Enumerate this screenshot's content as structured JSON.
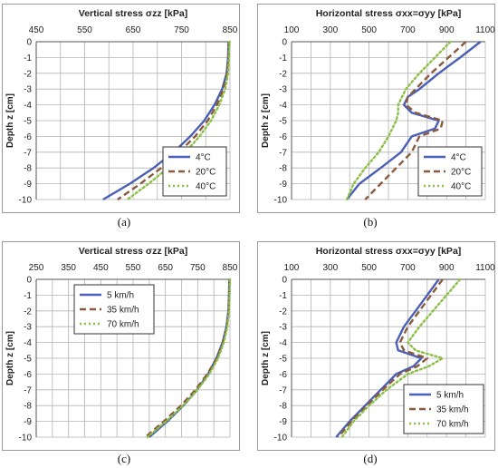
{
  "captions": [
    "(a)",
    "(b)",
    "(c)",
    "(d)"
  ],
  "colors": {
    "series1": "#4a5fb5",
    "series2": "#8a5a3c",
    "series3": "#8cbf45"
  },
  "chart_data": [
    {
      "type": "line",
      "title": "Vertical stress σzz [kPa]",
      "xlabel": "",
      "ylabel": "Depth z [cm]",
      "xlim": [
        450,
        850
      ],
      "ylim": [
        -10,
        0
      ],
      "xticks": [
        450,
        550,
        650,
        750,
        850
      ],
      "yticks": [
        0,
        -1,
        -2,
        -3,
        -4,
        -5,
        -6,
        -7,
        -8,
        -9,
        -10
      ],
      "grid": true,
      "legend": "bottom-right",
      "series": [
        {
          "name": "4°C",
          "style": "solid",
          "color": "#4a5fb5",
          "points": [
            [
              847,
              0
            ],
            [
              846,
              -1
            ],
            [
              843,
              -2
            ],
            [
              834,
              -3
            ],
            [
              818,
              -4
            ],
            [
              797,
              -5
            ],
            [
              768,
              -6
            ],
            [
              734,
              -7
            ],
            [
              692,
              -8
            ],
            [
              643,
              -9
            ],
            [
              588,
              -10
            ]
          ]
        },
        {
          "name": "20°C",
          "style": "dash",
          "color": "#8a5a3c",
          "points": [
            [
              848,
              0
            ],
            [
              847,
              -1
            ],
            [
              844,
              -2
            ],
            [
              837,
              -3
            ],
            [
              823,
              -4
            ],
            [
              804,
              -5
            ],
            [
              778,
              -6
            ],
            [
              745,
              -7
            ],
            [
              708,
              -8
            ],
            [
              665,
              -9
            ],
            [
              618,
              -10
            ]
          ]
        },
        {
          "name": "40°C",
          "style": "dot",
          "color": "#8cbf45",
          "points": [
            [
              849,
              0
            ],
            [
              848,
              -1
            ],
            [
              846,
              -2
            ],
            [
              840,
              -3
            ],
            [
              828,
              -4
            ],
            [
              811,
              -5
            ],
            [
              787,
              -6
            ],
            [
              758,
              -7
            ],
            [
              722,
              -8
            ],
            [
              682,
              -9
            ],
            [
              638,
              -10
            ]
          ]
        }
      ]
    },
    {
      "type": "line",
      "title": "Horizontal stress σxx=σyy [kPa]",
      "xlabel": "",
      "ylabel": "Depth z [cm]",
      "xlim": [
        100,
        1100
      ],
      "ylim": [
        -10,
        0
      ],
      "xticks": [
        100,
        300,
        500,
        700,
        900,
        1100
      ],
      "yticks": [
        0,
        -1,
        -2,
        -3,
        -4,
        -5,
        -6,
        -7,
        -8,
        -9,
        -10
      ],
      "grid": true,
      "legend": "bottom-right",
      "series": [
        {
          "name": "4°C",
          "style": "solid",
          "color": "#4a5fb5",
          "points": [
            [
              1075,
              0
            ],
            [
              970,
              -1
            ],
            [
              860,
              -2
            ],
            [
              760,
              -3
            ],
            [
              700,
              -3.5
            ],
            [
              680,
              -4
            ],
            [
              720,
              -4.5
            ],
            [
              860,
              -5
            ],
            [
              840,
              -5.5
            ],
            [
              720,
              -6
            ],
            [
              665,
              -7
            ],
            [
              560,
              -8
            ],
            [
              450,
              -9
            ],
            [
              385,
              -10
            ]
          ]
        },
        {
          "name": "20°C",
          "style": "dash",
          "color": "#8a5a3c",
          "points": [
            [
              1000,
              0
            ],
            [
              910,
              -1
            ],
            [
              820,
              -2
            ],
            [
              740,
              -3
            ],
            [
              700,
              -3.5
            ],
            [
              690,
              -4
            ],
            [
              740,
              -4.5
            ],
            [
              880,
              -5
            ],
            [
              870,
              -5.5
            ],
            [
              760,
              -6
            ],
            [
              720,
              -7
            ],
            [
              640,
              -8
            ],
            [
              560,
              -9
            ],
            [
              480,
              -10
            ]
          ]
        },
        {
          "name": "40°C",
          "style": "dot",
          "color": "#8cbf45",
          "points": [
            [
              920,
              0
            ],
            [
              840,
              -1
            ],
            [
              760,
              -2
            ],
            [
              690,
              -3
            ],
            [
              650,
              -4
            ],
            [
              650,
              -4.5
            ],
            [
              640,
              -5
            ],
            [
              600,
              -6
            ],
            [
              550,
              -7
            ],
            [
              480,
              -8
            ],
            [
              420,
              -9
            ],
            [
              385,
              -10
            ]
          ]
        }
      ]
    },
    {
      "type": "line",
      "title": "Vertical stress σzz [kPa]",
      "xlabel": "",
      "ylabel": "Depth z [cm]",
      "xlim": [
        250,
        850
      ],
      "ylim": [
        -10,
        0
      ],
      "xticks": [
        250,
        350,
        450,
        550,
        650,
        750,
        850
      ],
      "yticks": [
        0,
        -1,
        -2,
        -3,
        -4,
        -5,
        -6,
        -7,
        -8,
        -9,
        -10
      ],
      "grid": true,
      "legend": "top-left",
      "series": [
        {
          "name": "5 km/h",
          "style": "solid",
          "color": "#4a5fb5",
          "points": [
            [
              848,
              0
            ],
            [
              847,
              -1
            ],
            [
              845,
              -2
            ],
            [
              839,
              -3
            ],
            [
              827,
              -4
            ],
            [
              808,
              -5
            ],
            [
              782,
              -6
            ],
            [
              748,
              -7
            ],
            [
              706,
              -8
            ],
            [
              656,
              -9
            ],
            [
              600,
              -10
            ]
          ]
        },
        {
          "name": "35 km/h",
          "style": "dash",
          "color": "#8a5a3c",
          "points": [
            [
              849,
              0
            ],
            [
              848,
              -1
            ],
            [
              846,
              -2
            ],
            [
              840,
              -3
            ],
            [
              828,
              -4
            ],
            [
              809,
              -5
            ],
            [
              780,
              -6
            ],
            [
              743,
              -7
            ],
            [
              698,
              -8
            ],
            [
              645,
              -9
            ],
            [
              588,
              -10
            ]
          ]
        },
        {
          "name": "70 km/h",
          "style": "dot",
          "color": "#8cbf45",
          "points": [
            [
              850,
              0
            ],
            [
              849,
              -1
            ],
            [
              847,
              -2
            ],
            [
              842,
              -3
            ],
            [
              831,
              -4
            ],
            [
              813,
              -5
            ],
            [
              786,
              -6
            ],
            [
              749,
              -7
            ],
            [
              705,
              -8
            ],
            [
              652,
              -9
            ],
            [
              594,
              -10
            ]
          ]
        }
      ]
    },
    {
      "type": "line",
      "title": "Horizontal stress σxx=σyy [kPa]",
      "xlabel": "",
      "ylabel": "Depth z [cm]",
      "xlim": [
        100,
        1100
      ],
      "ylim": [
        -10,
        0
      ],
      "xticks": [
        100,
        300,
        500,
        700,
        900,
        1100
      ],
      "yticks": [
        0,
        -1,
        -2,
        -3,
        -4,
        -5,
        -6,
        -7,
        -8,
        -9,
        -10
      ],
      "grid": true,
      "legend": "bottom-right",
      "series": [
        {
          "name": "5 km/h",
          "style": "solid",
          "color": "#4a5fb5",
          "points": [
            [
              860,
              0
            ],
            [
              800,
              -1
            ],
            [
              740,
              -2
            ],
            [
              680,
              -3
            ],
            [
              640,
              -4
            ],
            [
              650,
              -4.5
            ],
            [
              770,
              -5
            ],
            [
              730,
              -5.5
            ],
            [
              640,
              -6
            ],
            [
              560,
              -7
            ],
            [
              480,
              -8
            ],
            [
              400,
              -9
            ],
            [
              330,
              -10
            ]
          ]
        },
        {
          "name": "35 km/h",
          "style": "dash",
          "color": "#8a5a3c",
          "points": [
            [
              880,
              0
            ],
            [
              820,
              -1
            ],
            [
              760,
              -2
            ],
            [
              700,
              -3
            ],
            [
              660,
              -4
            ],
            [
              680,
              -4.5
            ],
            [
              800,
              -5
            ],
            [
              750,
              -5.5
            ],
            [
              660,
              -6
            ],
            [
              570,
              -7
            ],
            [
              490,
              -8
            ],
            [
              410,
              -9
            ],
            [
              340,
              -10
            ]
          ]
        },
        {
          "name": "70 km/h",
          "style": "dot",
          "color": "#8cbf45",
          "points": [
            [
              970,
              0
            ],
            [
              900,
              -1
            ],
            [
              830,
              -2
            ],
            [
              760,
              -3
            ],
            [
              700,
              -4
            ],
            [
              740,
              -4.5
            ],
            [
              880,
              -5
            ],
            [
              810,
              -5.5
            ],
            [
              700,
              -6
            ],
            [
              590,
              -7
            ],
            [
              500,
              -8
            ],
            [
              420,
              -9
            ],
            [
              360,
              -10
            ]
          ]
        }
      ]
    }
  ]
}
